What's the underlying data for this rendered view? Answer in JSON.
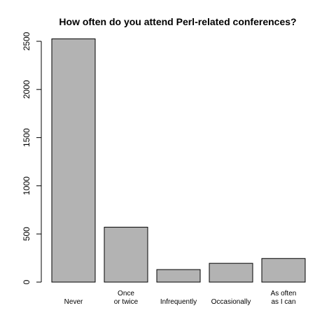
{
  "chart_data": {
    "type": "bar",
    "title": "How often do you attend Perl-related conferences?",
    "xlabel": "",
    "ylabel": "",
    "categories": [
      [
        "Never"
      ],
      [
        "Once",
        "or twice"
      ],
      [
        "Infrequently"
      ],
      [
        "Occasionally"
      ],
      [
        "As often",
        "as I can"
      ]
    ],
    "values": [
      2525,
      570,
      130,
      195,
      245
    ],
    "ylim": [
      0,
      2500
    ],
    "yticks": [
      0,
      500,
      1000,
      1500,
      2000,
      2500
    ],
    "grid": false,
    "legend": "none",
    "colors": {
      "bar_fill": "#b3b3b3",
      "bar_stroke": "#000000",
      "axis": "#000000",
      "background": "#ffffff"
    }
  }
}
